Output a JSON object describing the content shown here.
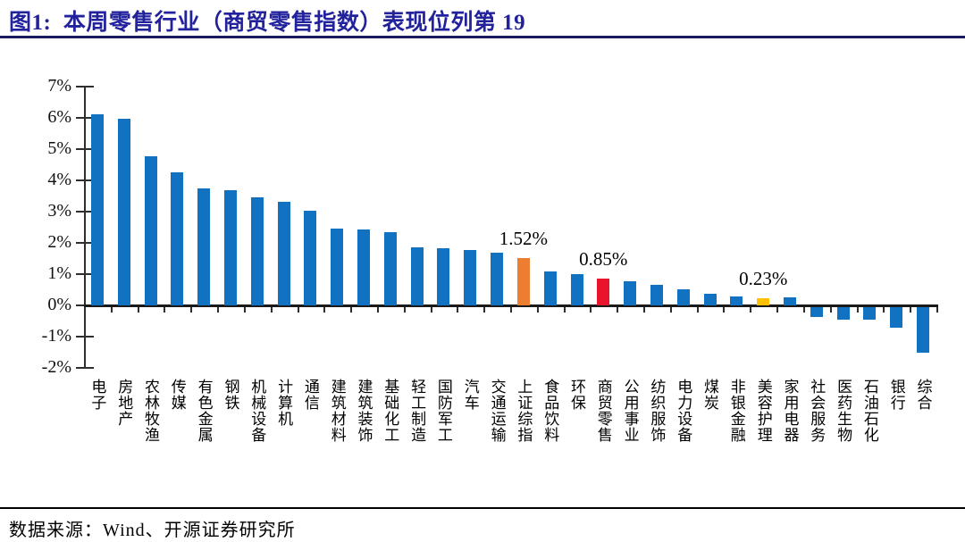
{
  "header": {
    "title": "图1:  本周零售行业（商贸零售指数）表现位列第 19"
  },
  "footer": {
    "source": "数据来源：Wind、开源证券研究所"
  },
  "chart_data": {
    "type": "bar",
    "title": "本周零售行业（商贸零售指数）表现位列第19",
    "xlabel": "",
    "ylabel": "",
    "categories": [
      "电子",
      "房地产",
      "农林牧渔",
      "传媒",
      "有色金属",
      "钢铁",
      "机械设备",
      "计算机",
      "通信",
      "建筑材料",
      "建筑装饰",
      "基础化工",
      "轻工制造",
      "国防军工",
      "汽车",
      "交通运输",
      "上证综指",
      "食品饮料",
      "环保",
      "商贸零售",
      "公用事业",
      "纺织服饰",
      "电力设备",
      "煤炭",
      "非银金融",
      "美容护理",
      "家用电器",
      "社会服务",
      "医药生物",
      "石油石化",
      "银行",
      "综合"
    ],
    "values": [
      6.12,
      5.96,
      4.78,
      4.27,
      3.74,
      3.7,
      3.47,
      3.31,
      3.02,
      2.46,
      2.42,
      2.35,
      1.87,
      1.83,
      1.76,
      1.7,
      1.52,
      1.08,
      1.0,
      0.85,
      0.78,
      0.65,
      0.52,
      0.36,
      0.28,
      0.23,
      0.26,
      -0.33,
      -0.41,
      -0.41,
      -0.68,
      -1.48
    ],
    "data_labels": [
      {
        "index": 16,
        "text": "1.52%"
      },
      {
        "index": 19,
        "text": "0.85%"
      },
      {
        "index": 25,
        "text": "0.23%"
      }
    ],
    "highlights": {
      "16": "#ED7D31",
      "19": "#E8152D",
      "25": "#FFC000"
    },
    "y_ticks": [
      "7%",
      "6%",
      "5%",
      "4%",
      "3%",
      "2%",
      "1%",
      "0%",
      "-1%",
      "-2%"
    ],
    "y_tick_values": [
      7,
      6,
      5,
      4,
      3,
      2,
      1,
      0,
      -1,
      -2
    ],
    "ylim": [
      -2,
      7
    ],
    "grid": false,
    "legend": null,
    "colors": {
      "bar": "#1272C2",
      "axis": "#2e2e2e",
      "title": "#22229C"
    }
  }
}
